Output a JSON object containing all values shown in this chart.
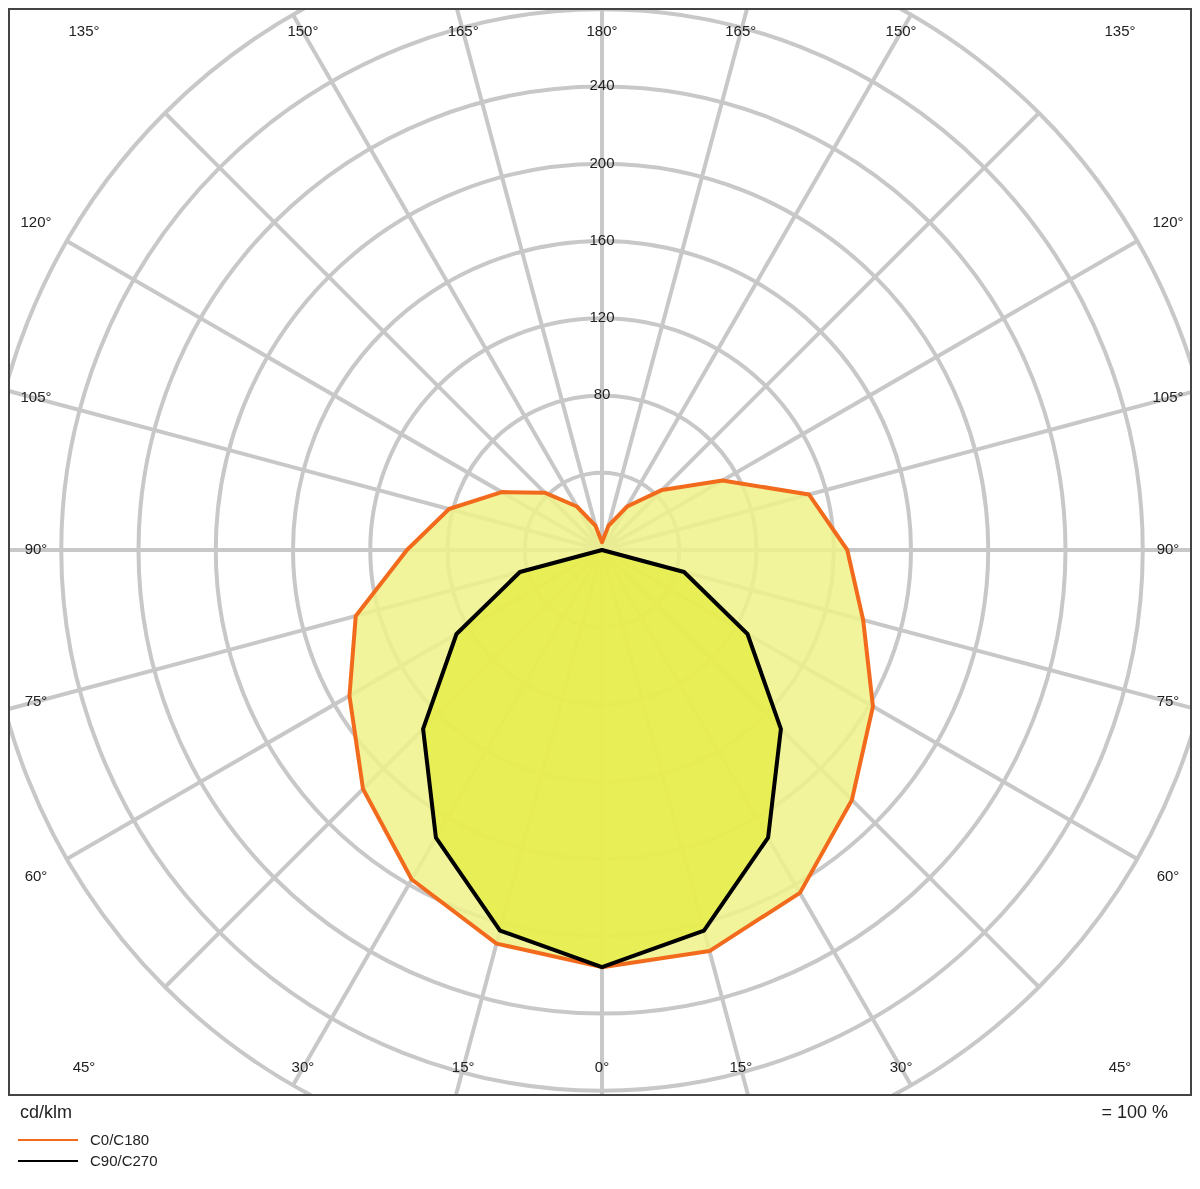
{
  "chart_data": {
    "type": "radar",
    "categories": [
      "180°",
      "165°",
      "150°",
      "135°",
      "120°",
      "105°",
      "90°",
      "75°",
      "60°",
      "45°",
      "30°",
      "15°",
      "0°",
      "15°",
      "30°",
      "45°",
      "60°",
      "75°",
      "90°",
      "105°",
      "120°",
      "135°",
      "150°",
      "165°"
    ],
    "series": [
      {
        "name": "C0/C180",
        "color": "#f26b1d",
        "values": [
          4,
          13,
          26,
          44,
          72,
          111,
          127,
          140,
          162,
          183,
          205,
          215,
          216,
          211,
          197,
          175,
          151,
          132,
          101,
          82,
          60,
          42,
          26,
          13
        ]
      },
      {
        "name": "C90/C270",
        "color": "#000000",
        "values": [
          0,
          0,
          0,
          0,
          0,
          0,
          0,
          44,
          87,
          131,
          172,
          204,
          216,
          204,
          172,
          131,
          87,
          44,
          0,
          0,
          0,
          0,
          0,
          0
        ]
      }
    ],
    "ylim": [
      0,
      320
    ],
    "yticks": [
      80,
      120,
      160,
      200,
      240
    ],
    "grid": true,
    "legend": "bottom left",
    "annotations": [
      "cd/klm",
      "= 100 %"
    ]
  }
}
